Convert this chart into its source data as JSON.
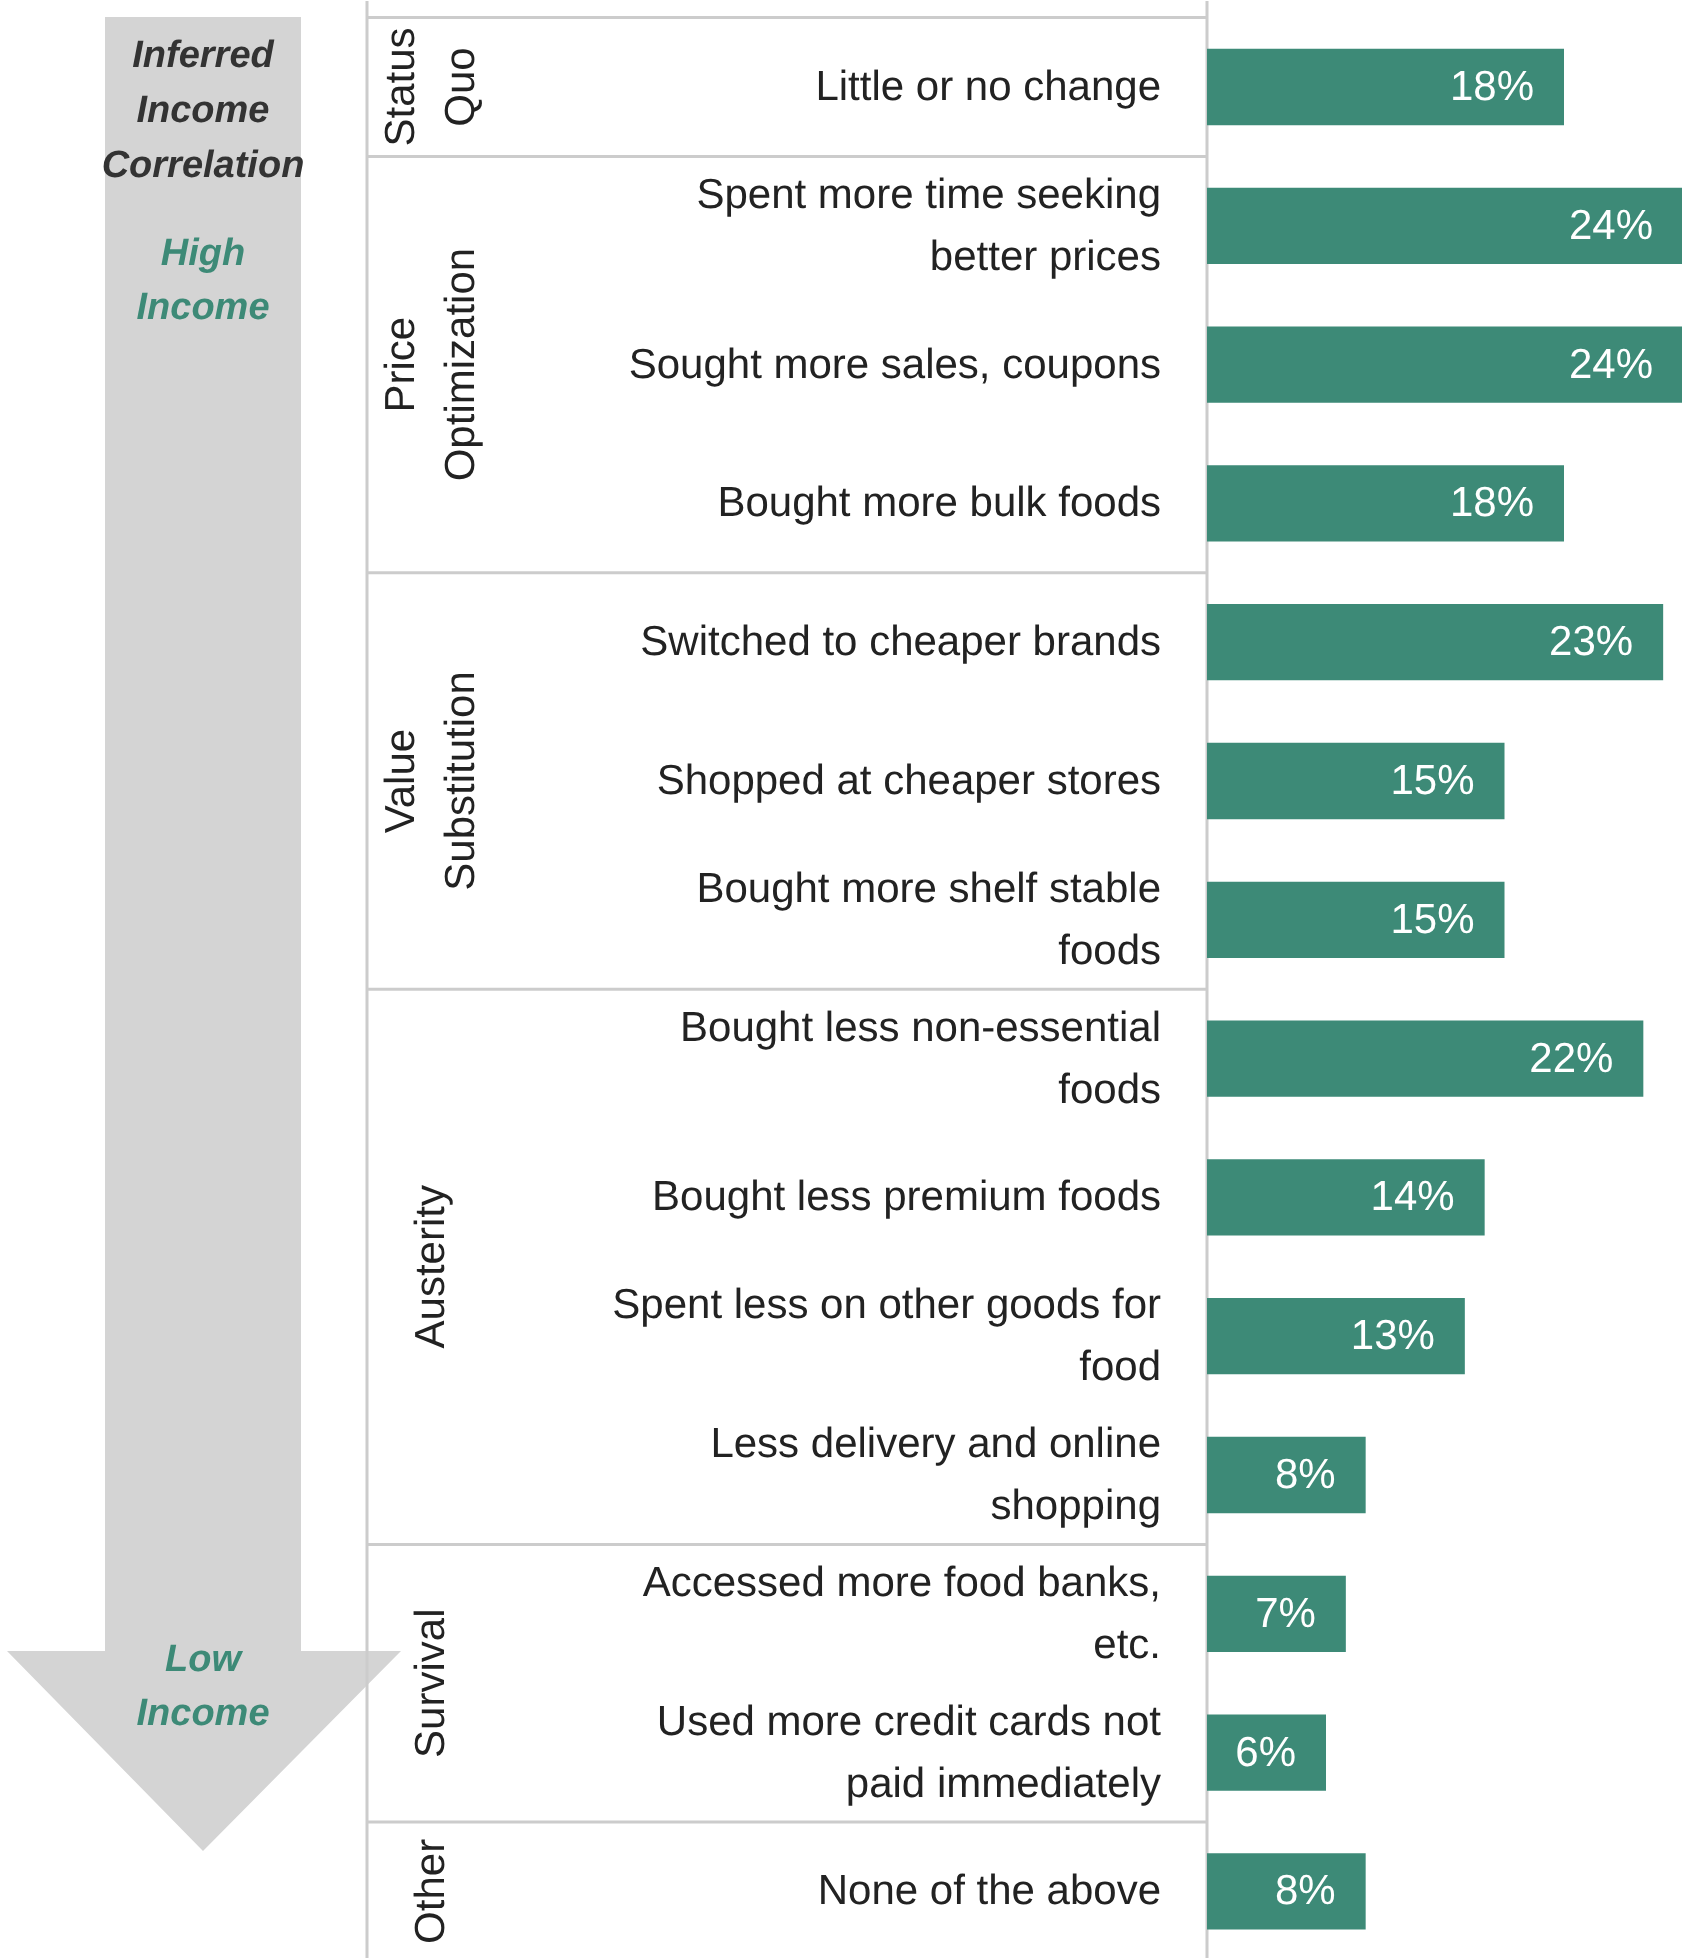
{
  "chart_data": {
    "type": "bar",
    "orientation": "horizontal",
    "categories": [
      "Little or no change",
      "Spent more time seeking better prices",
      "Sought more sales, coupons",
      "Bought more bulk foods",
      "Switched to cheaper brands",
      "Shopped at cheaper stores",
      "Bought more shelf stable foods",
      "Bought less non-essential foods",
      "Bought less premium foods",
      "Spent less on other goods for food",
      "Less delivery and online shopping",
      "Accessed more food banks, etc.",
      "Used more credit cards not paid immediately",
      "None of the above"
    ],
    "values": [
      18,
      24,
      24,
      18,
      23,
      15,
      15,
      22,
      14,
      13,
      8,
      7,
      6,
      8
    ],
    "value_labels": [
      "18%",
      "24%",
      "24%",
      "18%",
      "23%",
      "15%",
      "15%",
      "22%",
      "14%",
      "13%",
      "8%",
      "7%",
      "6%",
      "8%"
    ],
    "color": "#3d8a77",
    "xlim": [
      0,
      24
    ],
    "tick_labels": "y",
    "annotations": [
      "Inferred Income Correlation",
      "High Income",
      "Low Income",
      "Status Quo",
      "Price Optimization",
      "Value Substitution",
      "Austerity",
      "Survival",
      "Other"
    ]
  }
}
